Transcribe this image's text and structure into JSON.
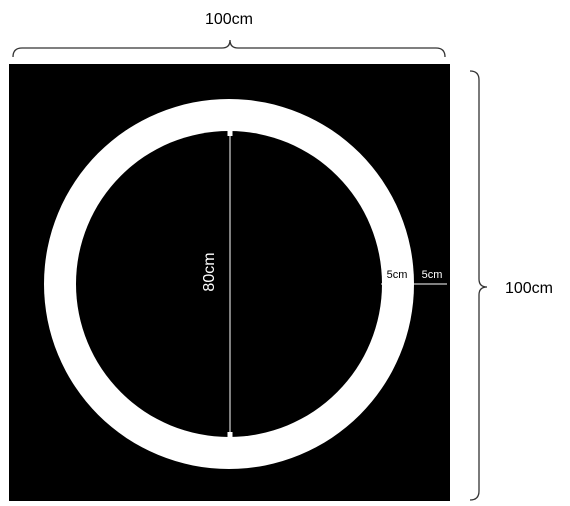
{
  "dimensions": {
    "width_label": "100cm",
    "height_label": "100cm",
    "inner_diameter_label": "80cm",
    "ring_width_label": "5cm",
    "outer_margin_label": "5cm"
  },
  "colors": {
    "square_fill": "#000000",
    "ring_fill": "#ffffff",
    "inner_fill": "#000000",
    "bracket_stroke": "#333333",
    "annotation_stroke": "#ffffff"
  }
}
